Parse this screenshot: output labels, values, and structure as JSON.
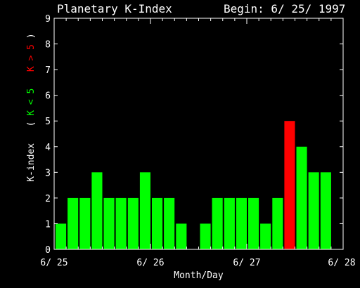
{
  "header": {
    "title": "Planetary K-Index",
    "begin": "Begin: 6/ 25/ 1997"
  },
  "y_axis_text": {
    "base": "K-index",
    "open": "(",
    "green_part": "K < 5",
    "red_part": "K > 5",
    "close": ")"
  },
  "colors": {
    "background": "#000000",
    "axis": "#ffffff",
    "low": "#00ff00",
    "high": "#ff0000"
  },
  "chart_data": {
    "type": "bar",
    "title": "Planetary K-Index",
    "xlabel": "Month/Day",
    "ylabel": "K-index",
    "ylim": [
      0,
      9
    ],
    "yticks": [
      "0",
      "1",
      "2",
      "3",
      "4",
      "5",
      "6",
      "7",
      "8",
      "9"
    ],
    "xticks": [
      "6/ 25",
      "6/ 26",
      "6/ 27",
      "6/ 28"
    ],
    "interval_hours": 3,
    "values": [
      1,
      2,
      2,
      3,
      2,
      2,
      2,
      3,
      2,
      2,
      1,
      null,
      1,
      2,
      2,
      2,
      2,
      1,
      2,
      5,
      4,
      3,
      3
    ],
    "threshold": 5,
    "legend": [
      {
        "label": "K < 5",
        "color": "#00ff00"
      },
      {
        "label": "K > 5",
        "color": "#ff0000"
      }
    ]
  }
}
